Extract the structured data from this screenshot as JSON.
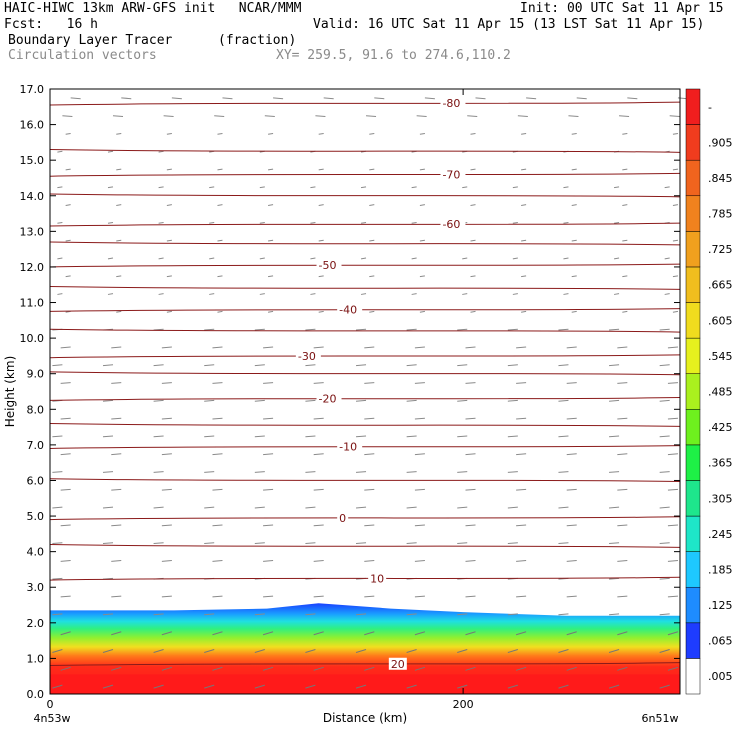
{
  "header": {
    "title_left": "HAIC-HIWC 13km ARW-GFS init   NCAR/MMM",
    "init": "Init: 00 UTC Sat 11 Apr 15",
    "fcst": "Fcst:   16 h",
    "valid": "Valid: 16 UTC Sat 11 Apr 15 (13 LST Sat 11 Apr 15)",
    "field1_name": "Boundary Layer Tracer",
    "field1_units": "(fraction)",
    "field2_name": "Circulation vectors",
    "xy_label": "XY= 259.5, 91.6 to 274.6,110.2"
  },
  "chart_data": {
    "type": "heatmap",
    "xlabel": "Distance (km)",
    "ylabel": "Height (km)",
    "xlim": [
      0,
      305
    ],
    "ylim": [
      0,
      17
    ],
    "x_ticks": [
      0,
      200
    ],
    "x_tick_labels": [
      "0",
      "200"
    ],
    "x_end_labels": [
      "4n53w",
      "6n51w"
    ],
    "y_ticks": [
      0,
      1,
      2,
      3,
      4,
      5,
      6,
      7,
      8,
      9,
      10,
      11,
      12,
      13,
      14,
      15,
      16,
      17
    ],
    "y_tick_labels": [
      "0.0",
      "1.0",
      "2.0",
      "3.0",
      "4.0",
      "5.0",
      "6.0",
      "7.0",
      "8.0",
      "9.0",
      "10.0",
      "11.0",
      "12.0",
      "13.0",
      "14.0",
      "15.0",
      "16.0",
      "17.0"
    ],
    "colorbar": {
      "labels": [
        ".005",
        ".065",
        ".125",
        ".185",
        ".245",
        ".305",
        ".365",
        ".425",
        ".485",
        ".545",
        ".605",
        ".665",
        ".725",
        ".785",
        ".845",
        ".905",
        "-"
      ],
      "colors": [
        "#ffffff",
        "#1e3cff",
        "#1e8cff",
        "#1ec8ff",
        "#1ee6c8",
        "#1ee68c",
        "#1ef046",
        "#6ef01e",
        "#aaf01e",
        "#e6f01e",
        "#f0dc1e",
        "#f0be1e",
        "#f0a01e",
        "#f0821e",
        "#f0641e",
        "#f03c1e",
        "#f01e1e"
      ]
    },
    "tracer_layer": {
      "top_height_km": [
        2.35,
        2.35,
        2.4,
        2.55,
        2.4,
        2.3,
        2.2,
        2.2
      ],
      "top_x_km": [
        0,
        60,
        105,
        130,
        165,
        200,
        250,
        305
      ]
    },
    "isotherms": [
      {
        "label": "-80",
        "height_km": 16.6,
        "label_x_km": 190
      },
      {
        "label": "-70",
        "height_km": 14.6,
        "label_x_km": 190
      },
      {
        "label": "-60",
        "height_km": 13.2,
        "label_x_km": 190
      },
      {
        "label": "-50",
        "height_km": 12.05,
        "label_x_km": 130
      },
      {
        "label": "-40",
        "height_km": 10.8,
        "label_x_km": 140
      },
      {
        "label": "-30",
        "height_km": 9.5,
        "label_x_km": 120
      },
      {
        "label": "-20",
        "height_km": 8.3,
        "label_x_km": 130
      },
      {
        "label": "-10",
        "height_km": 6.95,
        "label_x_km": 140
      },
      {
        "label": "0",
        "height_km": 4.95,
        "label_x_km": 140
      },
      {
        "label": "10",
        "height_km": 3.25,
        "label_x_km": 155
      },
      {
        "label": "20",
        "height_km": 0.85,
        "label_x_km": 165
      }
    ],
    "background_isotherm_heights_km": [
      15.25,
      14.0,
      12.65,
      11.4,
      10.2,
      9.0,
      7.55,
      6.0,
      4.15
    ]
  }
}
